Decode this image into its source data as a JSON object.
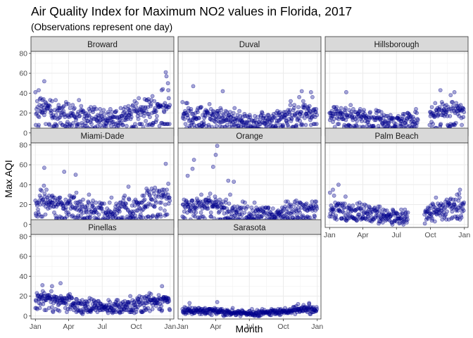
{
  "chart_data": {
    "type": "scatter",
    "title": "Air Quality Index for Maximum NO2 values in Florida, 2017",
    "subtitle": "(Observations represent one day)",
    "xlabel": "Month",
    "ylabel": "Max AQI",
    "x_tick_labels": [
      "Jan",
      "Apr",
      "Jul",
      "Oct",
      "Jan"
    ],
    "x_tick_dates": [
      "2017-01-01",
      "2017-04-01",
      "2017-07-01",
      "2017-10-01",
      "2018-01-01"
    ],
    "xlim": [
      "2016-12-20",
      "2018-01-11"
    ],
    "y_ticks": [
      0,
      20,
      40,
      60,
      80
    ],
    "ylim": [
      -3,
      82
    ],
    "grid": true,
    "point_color": "#00008B",
    "point_alpha": 0.35,
    "panels": [
      {
        "name": "Broward",
        "profile": [
          [
            1,
            24
          ],
          [
            2,
            26
          ],
          [
            3,
            22
          ],
          [
            4,
            21
          ],
          [
            5,
            19
          ],
          [
            6,
            16
          ],
          [
            7,
            15
          ],
          [
            8,
            16
          ],
          [
            9,
            18
          ],
          [
            10,
            20
          ],
          [
            11,
            24
          ],
          [
            12,
            28
          ]
        ],
        "spread": 11,
        "days": [
          1,
          365
        ],
        "highlights": [
          {
            "date": "2017-01-25",
            "value": 52
          },
          {
            "date": "2017-12-20",
            "value": 61
          },
          {
            "date": "2017-12-22",
            "value": 57
          },
          {
            "date": "2017-12-26",
            "value": 50
          },
          {
            "date": "2017-01-10",
            "value": 43
          }
        ]
      },
      {
        "name": "Duval",
        "profile": [
          [
            1,
            20
          ],
          [
            2,
            19
          ],
          [
            3,
            18
          ],
          [
            4,
            16
          ],
          [
            5,
            15
          ],
          [
            6,
            13
          ],
          [
            7,
            12
          ],
          [
            8,
            12
          ],
          [
            9,
            14
          ],
          [
            10,
            17
          ],
          [
            11,
            20
          ],
          [
            12,
            22
          ]
        ],
        "spread": 9,
        "days": [
          1,
          365
        ],
        "highlights": [
          {
            "date": "2017-01-30",
            "value": 47
          },
          {
            "date": "2017-04-20",
            "value": 42
          },
          {
            "date": "2017-11-20",
            "value": 42
          },
          {
            "date": "2017-12-15",
            "value": 41
          }
        ]
      },
      {
        "name": "Hillsborough",
        "profile": [
          [
            1,
            20
          ],
          [
            2,
            19
          ],
          [
            3,
            18
          ],
          [
            4,
            16
          ],
          [
            5,
            14
          ],
          [
            6,
            13
          ],
          [
            7,
            13
          ],
          [
            8,
            14
          ],
          [
            9,
            15
          ],
          [
            10,
            18
          ],
          [
            11,
            22
          ],
          [
            12,
            24
          ]
        ],
        "spread": 8,
        "days": [
          1,
          240,
          272,
          365
        ],
        "highlights": [
          {
            "date": "2017-02-15",
            "value": 41
          },
          {
            "date": "2017-10-28",
            "value": 43
          },
          {
            "date": "2017-12-05",
            "value": 41
          },
          {
            "date": "2017-11-25",
            "value": 38
          }
        ]
      },
      {
        "name": "Miami-Dade",
        "profile": [
          [
            1,
            25
          ],
          [
            2,
            24
          ],
          [
            3,
            22
          ],
          [
            4,
            20
          ],
          [
            5,
            17
          ],
          [
            6,
            14
          ],
          [
            7,
            13
          ],
          [
            8,
            14
          ],
          [
            9,
            16
          ],
          [
            10,
            20
          ],
          [
            11,
            24
          ],
          [
            12,
            27
          ]
        ],
        "spread": 12,
        "days": [
          1,
          365
        ],
        "highlights": [
          {
            "date": "2017-01-25",
            "value": 57
          },
          {
            "date": "2017-03-20",
            "value": 53
          },
          {
            "date": "2017-12-20",
            "value": 61
          },
          {
            "date": "2017-04-20",
            "value": 50
          }
        ]
      },
      {
        "name": "Orange",
        "profile": [
          [
            1,
            20
          ],
          [
            2,
            19
          ],
          [
            3,
            20
          ],
          [
            4,
            18
          ],
          [
            5,
            16
          ],
          [
            6,
            12
          ],
          [
            7,
            10
          ],
          [
            8,
            10
          ],
          [
            9,
            11
          ],
          [
            10,
            13
          ],
          [
            11,
            15
          ],
          [
            12,
            16
          ]
        ],
        "spread": 9,
        "days": [
          1,
          365
        ],
        "highlights": [
          {
            "date": "2017-04-05",
            "value": 79
          },
          {
            "date": "2017-02-01",
            "value": 65
          },
          {
            "date": "2017-04-01",
            "value": 70
          },
          {
            "date": "2017-01-28",
            "value": 56
          },
          {
            "date": "2017-03-25",
            "value": 58
          },
          {
            "date": "2017-05-05",
            "value": 44
          },
          {
            "date": "2017-05-20",
            "value": 43
          },
          {
            "date": "2017-01-15",
            "value": 49
          }
        ]
      },
      {
        "name": "Palm Beach",
        "profile": [
          [
            1,
            18
          ],
          [
            2,
            17
          ],
          [
            3,
            16
          ],
          [
            4,
            14
          ],
          [
            5,
            11
          ],
          [
            6,
            9
          ],
          [
            7,
            8
          ],
          [
            8,
            8
          ],
          [
            9,
            9
          ],
          [
            10,
            12
          ],
          [
            11,
            16
          ],
          [
            12,
            19
          ]
        ],
        "spread": 8,
        "days": [
          1,
          213,
          258,
          365
        ],
        "highlights": [
          {
            "date": "2017-01-25",
            "value": 40
          },
          {
            "date": "2017-01-10",
            "value": 35
          },
          {
            "date": "2017-12-20",
            "value": 35
          },
          {
            "date": "2017-12-12",
            "value": 30
          }
        ]
      },
      {
        "name": "Pinellas",
        "profile": [
          [
            1,
            18
          ],
          [
            2,
            17
          ],
          [
            3,
            16
          ],
          [
            4,
            14
          ],
          [
            5,
            12
          ],
          [
            6,
            10
          ],
          [
            7,
            10
          ],
          [
            8,
            10
          ],
          [
            9,
            11
          ],
          [
            10,
            13
          ],
          [
            11,
            15
          ],
          [
            12,
            17
          ]
        ],
        "spread": 6,
        "days": [
          1,
          365
        ],
        "highlights": [
          {
            "date": "2017-03-10",
            "value": 33
          },
          {
            "date": "2017-01-20",
            "value": 31
          },
          {
            "date": "2017-12-10",
            "value": 30
          },
          {
            "date": "2017-02-15",
            "value": 30
          }
        ]
      },
      {
        "name": "Sarasota",
        "profile": [
          [
            1,
            6
          ],
          [
            2,
            6
          ],
          [
            3,
            5
          ],
          [
            4,
            5
          ],
          [
            5,
            4
          ],
          [
            6,
            3
          ],
          [
            7,
            3
          ],
          [
            8,
            3
          ],
          [
            9,
            4
          ],
          [
            10,
            5
          ],
          [
            11,
            6
          ],
          [
            12,
            7
          ]
        ],
        "spread": 3,
        "days": [
          1,
          365
        ],
        "highlights": [
          {
            "date": "2017-01-20",
            "value": 13
          },
          {
            "date": "2017-04-05",
            "value": 14
          },
          {
            "date": "2017-12-10",
            "value": 13
          },
          {
            "date": "2017-11-10",
            "value": 12
          }
        ]
      }
    ]
  }
}
